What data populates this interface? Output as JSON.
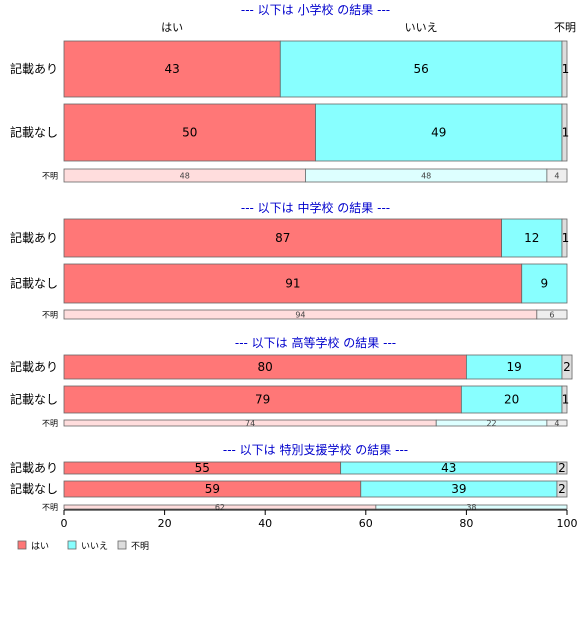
{
  "chart_data": {
    "type": "bar",
    "orientation": "horizontal-stacked-100",
    "response_categories": [
      "はい",
      "いいえ",
      "不明"
    ],
    "colors": {
      "はい": "#ff7777",
      "いいえ": "#88ffff",
      "不明": "#dddddd",
      "はい_light": "#ffdddd",
      "いいえ_light": "#ddffff",
      "不明_light": "#eeeeee"
    },
    "top_labels": [
      "はい",
      "いいえ",
      "不明"
    ],
    "x_ticks": [
      "0",
      "20",
      "40",
      "60",
      "80",
      "100"
    ],
    "xlim": [
      0,
      100
    ],
    "legend": {
      "position": "bottom-left",
      "entries": [
        "はい",
        "いいえ",
        "不明"
      ]
    },
    "panels": [
      {
        "title": "--- 以下は 小学校 の結果 ---",
        "rows": [
          {
            "label": "記載あり",
            "values": [
              43,
              56,
              1
            ],
            "labels": [
              "43",
              "56",
              "1"
            ]
          },
          {
            "label": "記載なし",
            "values": [
              50,
              49,
              1
            ],
            "labels": [
              "50",
              "49",
              "1"
            ]
          },
          {
            "label": "不明",
            "values": [
              48,
              48,
              4
            ],
            "labels": [
              "48",
              "48",
              "4"
            ]
          }
        ]
      },
      {
        "title": "--- 以下は 中学校 の結果 ---",
        "rows": [
          {
            "label": "記載あり",
            "values": [
              87,
              12,
              1
            ],
            "labels": [
              "87",
              "12",
              "1"
            ]
          },
          {
            "label": "記載なし",
            "values": [
              91,
              9,
              0
            ],
            "labels": [
              "91",
              "9",
              ""
            ]
          },
          {
            "label": "不明",
            "values": [
              94,
              0,
              6
            ],
            "labels": [
              "94",
              "",
              "6"
            ]
          }
        ]
      },
      {
        "title": "--- 以下は 高等学校 の結果 ---",
        "rows": [
          {
            "label": "記載あり",
            "values": [
              80,
              19,
              2
            ],
            "labels": [
              "80",
              "19",
              "2"
            ]
          },
          {
            "label": "記載なし",
            "values": [
              79,
              20,
              1
            ],
            "labels": [
              "79",
              "20",
              "1"
            ]
          },
          {
            "label": "不明",
            "values": [
              74,
              22,
              4
            ],
            "labels": [
              "74",
              "22",
              "4"
            ]
          }
        ]
      },
      {
        "title": "--- 以下は 特別支援学校 の結果 ---",
        "rows": [
          {
            "label": "記載あり",
            "values": [
              55,
              43,
              2
            ],
            "labels": [
              "55",
              "43",
              "2"
            ]
          },
          {
            "label": "記載なし",
            "values": [
              59,
              39,
              2
            ],
            "labels": [
              "59",
              "39",
              "2"
            ]
          },
          {
            "label": "不明",
            "values": [
              62,
              38,
              0
            ],
            "labels": [
              "62",
              "38",
              ""
            ]
          }
        ]
      }
    ]
  }
}
